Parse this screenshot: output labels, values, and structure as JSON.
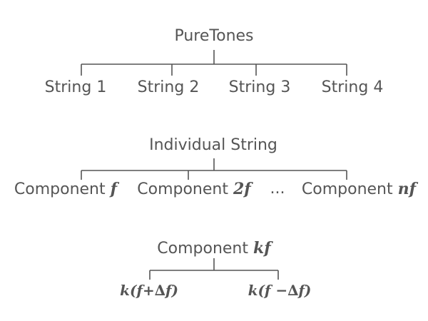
{
  "tree1": {
    "root": "PureTones",
    "children": [
      "String 1",
      "String 2",
      "String 3",
      "String 4"
    ]
  },
  "tree2": {
    "root": "Individual String",
    "children": [
      {
        "text": "Component ",
        "var": "f"
      },
      {
        "text": "Component ",
        "var": "2f"
      },
      {
        "text": "...",
        "var": ""
      },
      {
        "text": "Component ",
        "var": "nf"
      }
    ]
  },
  "tree3": {
    "root": {
      "text": "Component ",
      "var": "kf"
    },
    "children": [
      "k(f+∆f)",
      "k(f −∆f)"
    ]
  },
  "colors": {
    "line": "#555555",
    "text": "#555555"
  }
}
